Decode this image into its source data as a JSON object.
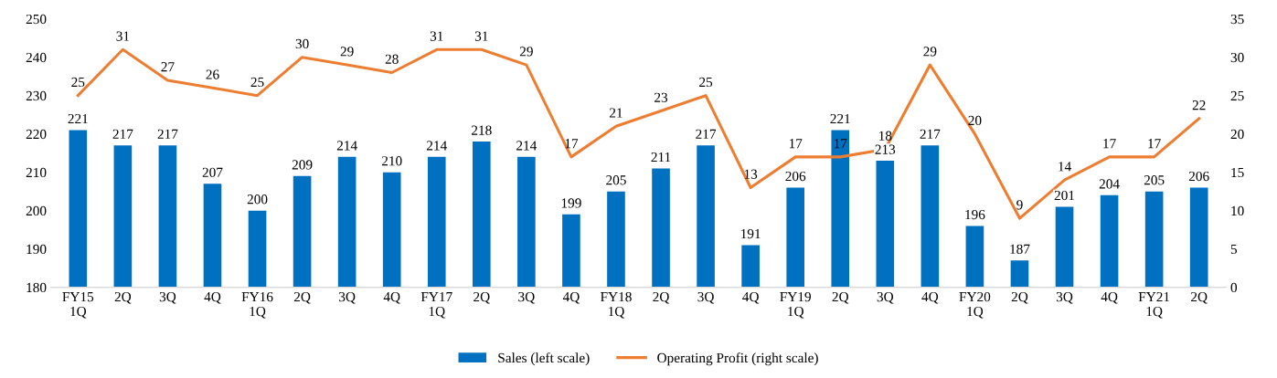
{
  "chart_data": {
    "type": "bar",
    "categories": [
      "FY15\n1Q",
      "2Q",
      "3Q",
      "4Q",
      "FY16\n1Q",
      "2Q",
      "3Q",
      "4Q",
      "FY17\n1Q",
      "2Q",
      "3Q",
      "4Q",
      "FY18\n1Q",
      "2Q",
      "3Q",
      "4Q",
      "FY19\n1Q",
      "2Q",
      "3Q",
      "4Q",
      "FY20\n1Q",
      "2Q",
      "3Q",
      "4Q",
      "FY21\n1Q",
      "2Q"
    ],
    "series": [
      {
        "name": "Sales (left scale)",
        "color": "#0070c0",
        "values": [
          221,
          217,
          217,
          207,
          200,
          209,
          214,
          210,
          214,
          218,
          214,
          199,
          205,
          211,
          217,
          191,
          206,
          221,
          213,
          217,
          196,
          187,
          201,
          204,
          205,
          206
        ]
      },
      {
        "name": "Operating Profit (right scale)",
        "type": "line",
        "axis": "y2",
        "color": "#ed7d31",
        "values": [
          25,
          31,
          27,
          26,
          25,
          30,
          29,
          28,
          31,
          31,
          29,
          17,
          21,
          23,
          25,
          13,
          17,
          17,
          18,
          29,
          20,
          9,
          14,
          17,
          17,
          22
        ]
      }
    ],
    "ylim": [
      180,
      250
    ],
    "yticks": [
      180,
      190,
      200,
      210,
      220,
      230,
      240,
      250
    ],
    "y2lim": [
      0,
      35
    ],
    "y2ticks": [
      0,
      5,
      10,
      15,
      20,
      25,
      30,
      35
    ],
    "data_labels": true,
    "legend": "bottom",
    "grid": false
  }
}
